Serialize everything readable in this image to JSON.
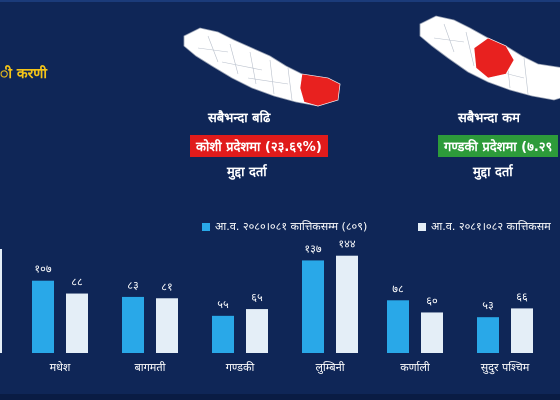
{
  "header": {
    "left_title": "ी करणी"
  },
  "panels": [
    {
      "caption_top": "सबैभन्दा बढि",
      "badge": "कोशी प्रदेशमा (२३.६९%)",
      "caption_bottom": "मुद्दा दर्ता",
      "badge_color": "#e01b1b",
      "highlight_color": "#e8211f"
    },
    {
      "caption_top": "सबैभन्दा कम",
      "badge": "गण्डकी प्रदेशमा (७.२९",
      "caption_bottom": "मुद्दा दर्ता",
      "badge_color": "#2d9b3a",
      "highlight_color": "#e8211f"
    }
  ],
  "colors": {
    "background": "#0f2657",
    "series1": "#29a8e8",
    "series2": "#e4eef7",
    "title": "#f5c518"
  },
  "chart_data": {
    "type": "bar",
    "categories": [
      "मधेश",
      "बागमती",
      "गण्डकी",
      "लुम्बिनी",
      "कर्णाली",
      "सुदुर पश्चिम"
    ],
    "series": [
      {
        "name": "आ.व. २०८०।०८१ कात्तिकसम्म (८०९)",
        "values": [
          107,
          83,
          55,
          137,
          78,
          53
        ],
        "labels": [
          "१०७",
          "८३",
          "५५",
          "१३७",
          "७८",
          "५३"
        ]
      },
      {
        "name": "आ.व. २०८१।०८२ कात्तिकसम",
        "values": [
          88,
          81,
          65,
          144,
          60,
          66
        ],
        "labels": [
          "८८",
          "८१",
          "६५",
          "१४४",
          "६०",
          "६६"
        ]
      }
    ],
    "ylim": [
      0,
      180
    ],
    "grid": false,
    "legend_position": "top"
  }
}
